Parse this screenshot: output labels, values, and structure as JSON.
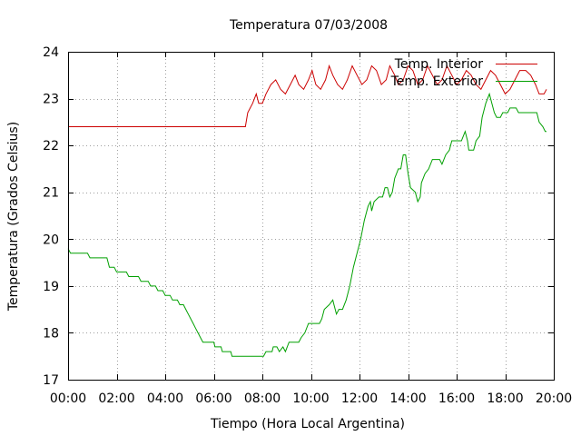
{
  "chart_data": {
    "type": "line",
    "title": "Temperatura 07/03/2008",
    "xlabel": "Tiempo (Hora Local Argentina)",
    "ylabel": "Temperatura (Grados Celsius)",
    "xlim": [
      0,
      20
    ],
    "ylim": [
      17,
      24
    ],
    "grid": true,
    "legend_position": "top-right",
    "x_ticks": [
      {
        "value": 0,
        "label": "00:00"
      },
      {
        "value": 2,
        "label": "02:00"
      },
      {
        "value": 4,
        "label": "04:00"
      },
      {
        "value": 6,
        "label": "06:00"
      },
      {
        "value": 8,
        "label": "08:00"
      },
      {
        "value": 10,
        "label": "10:00"
      },
      {
        "value": 12,
        "label": "12:00"
      },
      {
        "value": 14,
        "label": "14:00"
      },
      {
        "value": 16,
        "label": "16:00"
      },
      {
        "value": 18,
        "label": "18:00"
      },
      {
        "value": 20,
        "label": "20:00"
      }
    ],
    "y_ticks": [
      {
        "value": 17,
        "label": "17"
      },
      {
        "value": 18,
        "label": "18"
      },
      {
        "value": 19,
        "label": "19"
      },
      {
        "value": 20,
        "label": "20"
      },
      {
        "value": 21,
        "label": "21"
      },
      {
        "value": 22,
        "label": "22"
      },
      {
        "value": 23,
        "label": "23"
      },
      {
        "value": 24,
        "label": "24"
      }
    ],
    "series": [
      {
        "name": "Temp. Interior",
        "color": "#cc0000",
        "points": [
          [
            0,
            22.4
          ],
          [
            7.3,
            22.4
          ],
          [
            7.4,
            22.7
          ],
          [
            7.6,
            22.9
          ],
          [
            7.75,
            23.1
          ],
          [
            7.85,
            22.9
          ],
          [
            8.0,
            22.9
          ],
          [
            8.15,
            23.1
          ],
          [
            8.35,
            23.3
          ],
          [
            8.55,
            23.4
          ],
          [
            8.75,
            23.2
          ],
          [
            8.95,
            23.1
          ],
          [
            9.15,
            23.3
          ],
          [
            9.35,
            23.5
          ],
          [
            9.5,
            23.3
          ],
          [
            9.7,
            23.2
          ],
          [
            9.9,
            23.4
          ],
          [
            10.05,
            23.6
          ],
          [
            10.2,
            23.3
          ],
          [
            10.4,
            23.2
          ],
          [
            10.6,
            23.4
          ],
          [
            10.75,
            23.7
          ],
          [
            10.9,
            23.5
          ],
          [
            11.1,
            23.3
          ],
          [
            11.3,
            23.2
          ],
          [
            11.5,
            23.4
          ],
          [
            11.7,
            23.7
          ],
          [
            11.9,
            23.5
          ],
          [
            12.1,
            23.3
          ],
          [
            12.3,
            23.4
          ],
          [
            12.5,
            23.7
          ],
          [
            12.7,
            23.6
          ],
          [
            12.9,
            23.3
          ],
          [
            13.1,
            23.4
          ],
          [
            13.25,
            23.7
          ],
          [
            13.45,
            23.5
          ],
          [
            13.6,
            23.3
          ],
          [
            13.8,
            23.4
          ],
          [
            14.0,
            23.7
          ],
          [
            14.2,
            23.6
          ],
          [
            14.4,
            23.3
          ],
          [
            14.6,
            23.4
          ],
          [
            14.8,
            23.7
          ],
          [
            15.0,
            23.5
          ],
          [
            15.2,
            23.3
          ],
          [
            15.4,
            23.4
          ],
          [
            15.6,
            23.7
          ],
          [
            15.8,
            23.5
          ],
          [
            16.0,
            23.3
          ],
          [
            16.2,
            23.4
          ],
          [
            16.4,
            23.6
          ],
          [
            16.6,
            23.5
          ],
          [
            16.8,
            23.3
          ],
          [
            17.0,
            23.2
          ],
          [
            17.2,
            23.4
          ],
          [
            17.4,
            23.6
          ],
          [
            17.6,
            23.5
          ],
          [
            17.8,
            23.3
          ],
          [
            18.0,
            23.1
          ],
          [
            18.2,
            23.2
          ],
          [
            18.4,
            23.4
          ],
          [
            18.6,
            23.6
          ],
          [
            18.85,
            23.6
          ],
          [
            19.05,
            23.5
          ],
          [
            19.25,
            23.3
          ],
          [
            19.4,
            23.1
          ],
          [
            19.6,
            23.1
          ],
          [
            19.7,
            23.2
          ]
        ]
      },
      {
        "name": "Temp. Exterior",
        "color": "#00a000",
        "points": [
          [
            0,
            19.8
          ],
          [
            0.1,
            19.7
          ],
          [
            0.8,
            19.7
          ],
          [
            0.9,
            19.6
          ],
          [
            1.6,
            19.6
          ],
          [
            1.7,
            19.4
          ],
          [
            1.9,
            19.4
          ],
          [
            2.0,
            19.3
          ],
          [
            2.4,
            19.3
          ],
          [
            2.5,
            19.2
          ],
          [
            2.9,
            19.2
          ],
          [
            3.0,
            19.1
          ],
          [
            3.3,
            19.1
          ],
          [
            3.4,
            19.0
          ],
          [
            3.6,
            19.0
          ],
          [
            3.7,
            18.9
          ],
          [
            3.9,
            18.9
          ],
          [
            4.0,
            18.8
          ],
          [
            4.2,
            18.8
          ],
          [
            4.3,
            18.7
          ],
          [
            4.5,
            18.7
          ],
          [
            4.6,
            18.6
          ],
          [
            4.75,
            18.6
          ],
          [
            4.85,
            18.5
          ],
          [
            4.95,
            18.4
          ],
          [
            5.05,
            18.3
          ],
          [
            5.15,
            18.2
          ],
          [
            5.25,
            18.1
          ],
          [
            5.35,
            18.0
          ],
          [
            5.45,
            17.9
          ],
          [
            5.55,
            17.8
          ],
          [
            6.0,
            17.8
          ],
          [
            6.05,
            17.7
          ],
          [
            6.3,
            17.7
          ],
          [
            6.35,
            17.6
          ],
          [
            6.7,
            17.6
          ],
          [
            6.75,
            17.5
          ],
          [
            8.05,
            17.5
          ],
          [
            8.15,
            17.6
          ],
          [
            8.4,
            17.6
          ],
          [
            8.45,
            17.7
          ],
          [
            8.6,
            17.7
          ],
          [
            8.7,
            17.6
          ],
          [
            8.85,
            17.7
          ],
          [
            8.95,
            17.6
          ],
          [
            9.1,
            17.8
          ],
          [
            9.5,
            17.8
          ],
          [
            9.6,
            17.9
          ],
          [
            9.75,
            18.0
          ],
          [
            9.9,
            18.2
          ],
          [
            10.35,
            18.2
          ],
          [
            10.45,
            18.3
          ],
          [
            10.55,
            18.5
          ],
          [
            10.75,
            18.6
          ],
          [
            10.9,
            18.7
          ],
          [
            10.95,
            18.6
          ],
          [
            11.05,
            18.4
          ],
          [
            11.15,
            18.5
          ],
          [
            11.3,
            18.5
          ],
          [
            11.45,
            18.7
          ],
          [
            11.6,
            19.0
          ],
          [
            11.75,
            19.4
          ],
          [
            11.9,
            19.7
          ],
          [
            12.05,
            20.0
          ],
          [
            12.2,
            20.4
          ],
          [
            12.35,
            20.7
          ],
          [
            12.45,
            20.8
          ],
          [
            12.5,
            20.6
          ],
          [
            12.6,
            20.8
          ],
          [
            12.8,
            20.9
          ],
          [
            12.95,
            20.9
          ],
          [
            13.05,
            21.1
          ],
          [
            13.15,
            21.1
          ],
          [
            13.25,
            20.9
          ],
          [
            13.35,
            21.0
          ],
          [
            13.45,
            21.3
          ],
          [
            13.6,
            21.5
          ],
          [
            13.7,
            21.5
          ],
          [
            13.8,
            21.8
          ],
          [
            13.9,
            21.8
          ],
          [
            14.0,
            21.4
          ],
          [
            14.1,
            21.1
          ],
          [
            14.3,
            21.0
          ],
          [
            14.4,
            20.8
          ],
          [
            14.5,
            20.9
          ],
          [
            14.55,
            21.2
          ],
          [
            14.7,
            21.4
          ],
          [
            14.85,
            21.5
          ],
          [
            15.0,
            21.7
          ],
          [
            15.3,
            21.7
          ],
          [
            15.4,
            21.6
          ],
          [
            15.55,
            21.8
          ],
          [
            15.7,
            21.9
          ],
          [
            15.8,
            22.1
          ],
          [
            16.2,
            22.1
          ],
          [
            16.35,
            22.3
          ],
          [
            16.45,
            22.1
          ],
          [
            16.5,
            21.9
          ],
          [
            16.7,
            21.9
          ],
          [
            16.8,
            22.1
          ],
          [
            16.95,
            22.2
          ],
          [
            17.05,
            22.6
          ],
          [
            17.2,
            22.9
          ],
          [
            17.35,
            23.1
          ],
          [
            17.45,
            22.9
          ],
          [
            17.55,
            22.7
          ],
          [
            17.65,
            22.6
          ],
          [
            17.8,
            22.6
          ],
          [
            17.9,
            22.7
          ],
          [
            18.1,
            22.7
          ],
          [
            18.2,
            22.8
          ],
          [
            18.45,
            22.8
          ],
          [
            18.55,
            22.7
          ],
          [
            19.3,
            22.7
          ],
          [
            19.4,
            22.5
          ],
          [
            19.55,
            22.4
          ],
          [
            19.65,
            22.3
          ],
          [
            19.7,
            22.3
          ]
        ]
      }
    ]
  }
}
